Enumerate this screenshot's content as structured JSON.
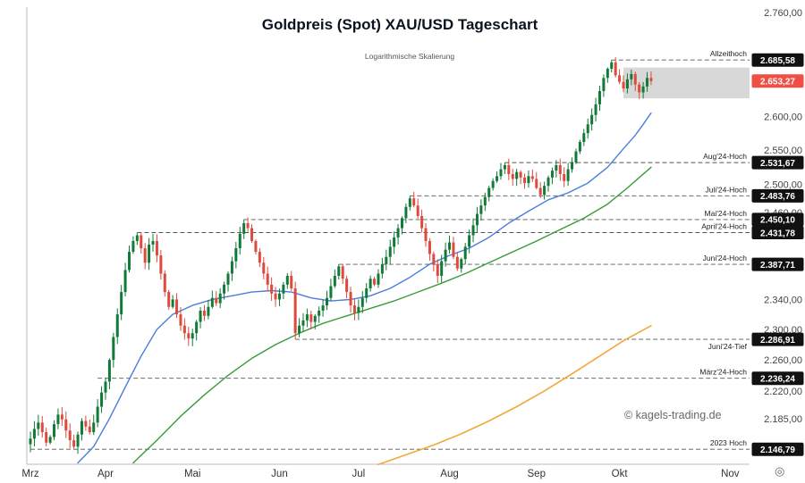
{
  "header": {
    "title": "Goldpreis (Spot) XAU/USD Tageschart",
    "subtitle": "Logarithmische Skalierung"
  },
  "watermark": "© kagels-trading.de",
  "corner_icon": "◎",
  "colors": {
    "up": "#117a38",
    "down": "#de4a3e",
    "ma_fast": "#4a7edb",
    "ma_mid": "#3a9a3a",
    "ma_slow": "#f2a93b",
    "badge_bg": "#111111",
    "badge_current_bg": "#ef4f44",
    "badge_text": "#ffffff",
    "zone_fill": "#d8d8d8",
    "dashed_line": "#555555",
    "axis_line": "#bbbbbb",
    "tick_text": "#444444",
    "annotation_text": "#222222",
    "month_text": "#333333"
  },
  "x_axis": {
    "months": [
      {
        "label": "Mrz",
        "index": 0
      },
      {
        "label": "Apr",
        "index": 19
      },
      {
        "label": "Mai",
        "index": 41
      },
      {
        "label": "Jun",
        "index": 63
      },
      {
        "label": "Jul",
        "index": 83
      },
      {
        "label": "Aug",
        "index": 106
      },
      {
        "label": "Sep",
        "index": 128
      },
      {
        "label": "Okt",
        "index": 149
      },
      {
        "label": "Nov",
        "index": 177
      }
    ]
  },
  "y_axis": {
    "ticks": [
      {
        "label": "2.760,00",
        "price": 2760
      },
      {
        "label": "2.600,00",
        "price": 2600
      },
      {
        "label": "2.550,00",
        "price": 2550
      },
      {
        "label": "2.500,00",
        "price": 2500
      },
      {
        "label": "2.460,00",
        "price": 2460
      },
      {
        "label": "2.340,00",
        "price": 2340
      },
      {
        "label": "2.300,00",
        "price": 2300
      },
      {
        "label": "2.260,00",
        "price": 2260
      },
      {
        "label": "2.220,00",
        "price": 2220
      },
      {
        "label": "2.185,00",
        "price": 2185
      }
    ]
  },
  "levels": [
    {
      "label": "Allzeithoch",
      "badge": "2.685,58",
      "price": 2685.58,
      "start_index": 147,
      "label_below": false
    },
    {
      "label": "Aug'24-Hoch",
      "badge": "2.531,67",
      "price": 2531.67,
      "start_index": 120,
      "label_below": false
    },
    {
      "label": "Juli'24-Hoch",
      "badge": "2.483,76",
      "price": 2483.76,
      "start_index": 96,
      "label_below": false
    },
    {
      "label": "Mai'24-Hoch",
      "badge": "2.450,10",
      "price": 2450.1,
      "start_index": 54,
      "label_below": false
    },
    {
      "label": "April'24-Hoch",
      "badge": "2.431,78",
      "price": 2431.78,
      "start_index": 27,
      "label_below": false
    },
    {
      "label": "Juni'24-Hoch",
      "badge": "2.387,71",
      "price": 2387.71,
      "start_index": 78,
      "label_below": false
    },
    {
      "label": "Juni'24-Tief",
      "badge": "2.286,91",
      "price": 2286.91,
      "start_index": 67,
      "label_below": true
    },
    {
      "label": "März'24-Hoch",
      "badge": "2.236,24",
      "price": 2236.24,
      "start_index": 17,
      "label_below": false
    },
    {
      "label": "2023 Hoch",
      "badge": "2.146,79",
      "price": 2146.79,
      "start_index": 0,
      "label_below": false
    }
  ],
  "current_price": {
    "badge": "2.653,27",
    "price": 2653.27
  },
  "zone": {
    "from_index": 150,
    "price_top": 2674,
    "price_bottom": 2627
  },
  "chart_data": {
    "type": "candlestick",
    "title": "Goldpreis (Spot) XAU/USD Tageschart",
    "scale": "log",
    "y_range": [
      2135,
      2775
    ],
    "x_categories_months": [
      "Mrz",
      "Apr",
      "Mai",
      "Jun",
      "Jul",
      "Aug",
      "Sep",
      "Okt",
      "Nov"
    ],
    "closes": [
      2160,
      2172,
      2180,
      2168,
      2155,
      2162,
      2178,
      2190,
      2184,
      2170,
      2158,
      2150,
      2165,
      2182,
      2175,
      2168,
      2180,
      2200,
      2218,
      2232,
      2260,
      2290,
      2320,
      2350,
      2380,
      2405,
      2420,
      2428,
      2410,
      2390,
      2415,
      2420,
      2400,
      2375,
      2350,
      2330,
      2340,
      2320,
      2305,
      2295,
      2288,
      2295,
      2310,
      2325,
      2318,
      2330,
      2342,
      2335,
      2348,
      2360,
      2375,
      2392,
      2410,
      2430,
      2445,
      2438,
      2420,
      2405,
      2390,
      2375,
      2360,
      2348,
      2340,
      2348,
      2360,
      2372,
      2355,
      2295,
      2305,
      2312,
      2320,
      2310,
      2318,
      2325,
      2332,
      2342,
      2358,
      2372,
      2385,
      2368,
      2350,
      2332,
      2322,
      2330,
      2342,
      2355,
      2368,
      2360,
      2375,
      2388,
      2398,
      2412,
      2425,
      2438,
      2452,
      2468,
      2480,
      2470,
      2455,
      2438,
      2420,
      2402,
      2388,
      2372,
      2392,
      2408,
      2418,
      2398,
      2382,
      2395,
      2412,
      2428,
      2442,
      2458,
      2470,
      2482,
      2495,
      2505,
      2512,
      2522,
      2528,
      2515,
      2508,
      2518,
      2510,
      2502,
      2512,
      2508,
      2495,
      2485,
      2498,
      2510,
      2520,
      2528,
      2515,
      2505,
      2522,
      2532,
      2548,
      2562,
      2575,
      2588,
      2602,
      2618,
      2638,
      2658,
      2672,
      2682,
      2662,
      2652,
      2642,
      2656,
      2664,
      2648,
      2636,
      2645,
      2658,
      2653.27
    ],
    "wick_overrides": {
      "11": {
        "low": 2147.5
      },
      "27": {
        "high": 2431.78
      },
      "54": {
        "high": 2450.1
      },
      "67": {
        "low": 2286.91
      },
      "78": {
        "high": 2387.71
      },
      "96": {
        "high": 2483.76
      },
      "120": {
        "high": 2531.67
      },
      "147": {
        "high": 2685.58
      }
    },
    "series": [
      {
        "name": "ma-fast-blue",
        "color": "ma_fast",
        "width": 1.4,
        "points": [
          [
            12,
            2130
          ],
          [
            16,
            2150
          ],
          [
            20,
            2185
          ],
          [
            24,
            2225
          ],
          [
            28,
            2265
          ],
          [
            32,
            2300
          ],
          [
            36,
            2320
          ],
          [
            41,
            2332
          ],
          [
            46,
            2340
          ],
          [
            51,
            2345
          ],
          [
            56,
            2350
          ],
          [
            61,
            2352
          ],
          [
            66,
            2350
          ],
          [
            71,
            2342
          ],
          [
            76,
            2338
          ],
          [
            81,
            2340
          ],
          [
            86,
            2345
          ],
          [
            91,
            2355
          ],
          [
            96,
            2370
          ],
          [
            101,
            2388
          ],
          [
            106,
            2400
          ],
          [
            111,
            2410
          ],
          [
            116,
            2425
          ],
          [
            121,
            2445
          ],
          [
            126,
            2462
          ],
          [
            131,
            2478
          ],
          [
            136,
            2488
          ],
          [
            141,
            2502
          ],
          [
            146,
            2525
          ],
          [
            150,
            2552
          ],
          [
            153,
            2572
          ],
          [
            155,
            2588
          ],
          [
            157,
            2605
          ]
        ]
      },
      {
        "name": "ma-mid-green",
        "color": "ma_mid",
        "width": 1.4,
        "points": [
          [
            26,
            2130
          ],
          [
            32,
            2158
          ],
          [
            38,
            2188
          ],
          [
            44,
            2215
          ],
          [
            50,
            2240
          ],
          [
            56,
            2262
          ],
          [
            62,
            2280
          ],
          [
            68,
            2295
          ],
          [
            74,
            2308
          ],
          [
            80,
            2318
          ],
          [
            86,
            2328
          ],
          [
            92,
            2338
          ],
          [
            98,
            2350
          ],
          [
            104,
            2362
          ],
          [
            110,
            2375
          ],
          [
            116,
            2390
          ],
          [
            122,
            2405
          ],
          [
            128,
            2420
          ],
          [
            134,
            2436
          ],
          [
            140,
            2452
          ],
          [
            146,
            2472
          ],
          [
            151,
            2495
          ],
          [
            157,
            2525
          ]
        ]
      },
      {
        "name": "ma-slow-orange",
        "color": "ma_slow",
        "width": 1.6,
        "points": [
          [
            88,
            2128
          ],
          [
            95,
            2140
          ],
          [
            102,
            2152
          ],
          [
            109,
            2166
          ],
          [
            116,
            2182
          ],
          [
            123,
            2200
          ],
          [
            130,
            2220
          ],
          [
            137,
            2242
          ],
          [
            144,
            2265
          ],
          [
            150,
            2285
          ],
          [
            157,
            2305
          ]
        ]
      }
    ]
  }
}
